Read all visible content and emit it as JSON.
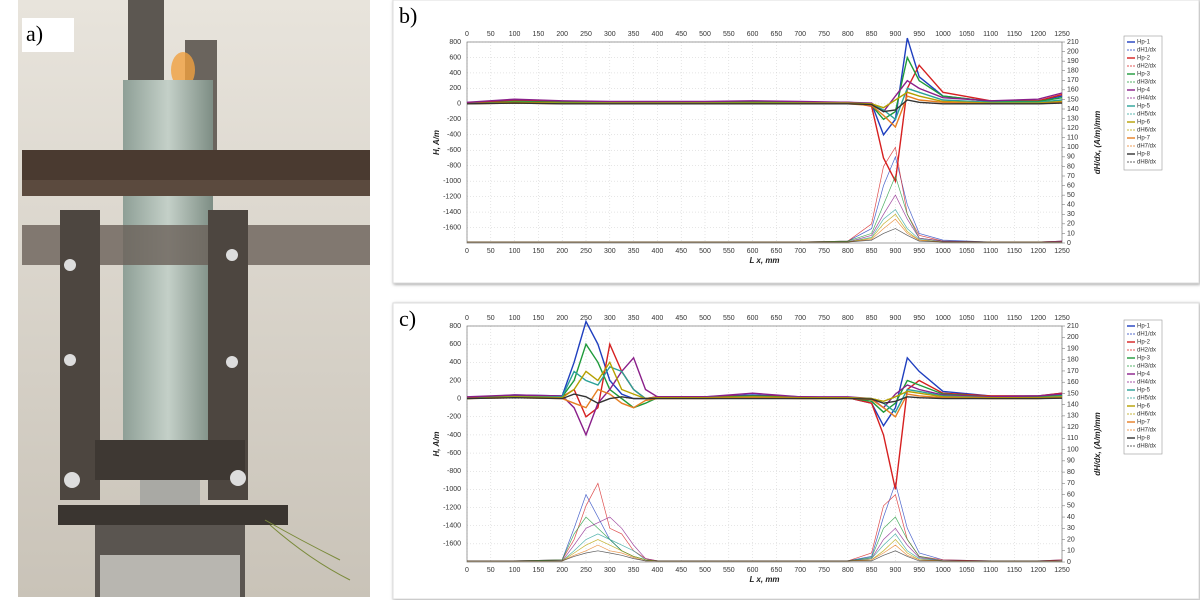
{
  "photo": {
    "label": "a)"
  },
  "chart_data": [
    {
      "type": "line",
      "label": "b)",
      "xlabel": "L x, mm",
      "ylabel": "H, A/m",
      "y2label": "dH/dx, (A/m)/mm",
      "x": [
        0,
        100,
        200,
        300,
        400,
        500,
        600,
        700,
        800,
        850,
        875,
        900,
        925,
        950,
        1000,
        1100,
        1200,
        1250
      ],
      "xlim": [
        0,
        1250
      ],
      "ylim": [
        -1800,
        800
      ],
      "y2lim": [
        0,
        210
      ],
      "grid": true,
      "xticks": [
        0,
        50,
        100,
        150,
        200,
        250,
        300,
        350,
        400,
        450,
        500,
        550,
        600,
        650,
        700,
        750,
        800,
        850,
        900,
        950,
        1000,
        1050,
        1100,
        1150,
        1200,
        1250
      ],
      "yticks": [
        800,
        600,
        400,
        200,
        0,
        -200,
        -400,
        -600,
        -800,
        -1000,
        -1200,
        -1400,
        -1600
      ],
      "y2ticks": [
        0,
        10,
        20,
        30,
        40,
        50,
        60,
        70,
        80,
        90,
        100,
        110,
        120,
        130,
        140,
        150,
        160,
        170,
        180,
        190,
        200,
        210
      ],
      "series": [
        {
          "name": "Hp-1",
          "color": "#1f3fbf",
          "values": [
            10,
            50,
            30,
            25,
            20,
            20,
            30,
            20,
            20,
            0,
            -400,
            -200,
            850,
            350,
            100,
            30,
            40,
            100
          ]
        },
        {
          "name": "dH1/dx",
          "color": "#1f3fbf",
          "axis": "y2",
          "values": [
            1,
            1,
            1,
            1,
            1,
            1,
            1,
            1,
            2,
            15,
            60,
            90,
            40,
            10,
            3,
            1,
            1,
            2
          ]
        },
        {
          "name": "Hp-2",
          "color": "#d62020",
          "values": [
            10,
            40,
            30,
            25,
            20,
            20,
            30,
            20,
            20,
            -30,
            -700,
            -1000,
            200,
            500,
            150,
            40,
            40,
            120
          ]
        },
        {
          "name": "dH2/dx",
          "color": "#d62020",
          "axis": "y2",
          "values": [
            1,
            1,
            1,
            1,
            1,
            1,
            1,
            1,
            2,
            20,
            80,
            100,
            30,
            8,
            2,
            1,
            1,
            2
          ]
        },
        {
          "name": "Hp-3",
          "color": "#1e9a3a",
          "values": [
            0,
            30,
            20,
            20,
            20,
            20,
            20,
            20,
            10,
            -20,
            -200,
            -100,
            600,
            300,
            100,
            30,
            30,
            80
          ]
        },
        {
          "name": "dH3/dx",
          "color": "#1e9a3a",
          "axis": "y2",
          "values": [
            1,
            1,
            1,
            1,
            1,
            1,
            1,
            1,
            2,
            10,
            40,
            70,
            30,
            5,
            2,
            1,
            1,
            1
          ]
        },
        {
          "name": "Hp-4",
          "color": "#8a1f8a",
          "values": [
            20,
            60,
            40,
            30,
            30,
            30,
            40,
            30,
            20,
            10,
            -100,
            100,
            300,
            200,
            80,
            40,
            60,
            140
          ]
        },
        {
          "name": "dH4/dx",
          "color": "#8a1f8a",
          "axis": "y2",
          "values": [
            1,
            1,
            1,
            1,
            1,
            1,
            1,
            1,
            1,
            8,
            30,
            50,
            25,
            5,
            2,
            1,
            1,
            2
          ]
        },
        {
          "name": "Hp-5",
          "color": "#2aa198",
          "values": [
            0,
            20,
            10,
            10,
            10,
            10,
            10,
            10,
            10,
            0,
            -80,
            -200,
            200,
            150,
            50,
            20,
            20,
            50
          ]
        },
        {
          "name": "dH5/dx",
          "color": "#2aa198",
          "axis": "y2",
          "values": [
            1,
            1,
            1,
            1,
            1,
            1,
            1,
            1,
            1,
            6,
            25,
            35,
            15,
            4,
            1,
            1,
            1,
            1
          ]
        },
        {
          "name": "Hp-6",
          "color": "#b5a000",
          "values": [
            0,
            20,
            10,
            10,
            10,
            10,
            10,
            10,
            10,
            0,
            -50,
            50,
            150,
            100,
            30,
            10,
            10,
            30
          ]
        },
        {
          "name": "dH6/dx",
          "color": "#b5a000",
          "axis": "y2",
          "values": [
            1,
            1,
            1,
            1,
            1,
            1,
            1,
            1,
            1,
            5,
            20,
            30,
            12,
            3,
            1,
            1,
            1,
            1
          ]
        },
        {
          "name": "Hp-7",
          "color": "#e67e22",
          "values": [
            0,
            10,
            0,
            0,
            0,
            0,
            0,
            0,
            0,
            -20,
            -150,
            -300,
            100,
            50,
            20,
            0,
            0,
            20
          ]
        },
        {
          "name": "dH7/dx",
          "color": "#e67e22",
          "axis": "y2",
          "values": [
            1,
            1,
            1,
            1,
            1,
            1,
            1,
            1,
            1,
            4,
            15,
            25,
            10,
            3,
            1,
            1,
            1,
            1
          ]
        },
        {
          "name": "Hp-8",
          "color": "#333333",
          "values": [
            0,
            10,
            0,
            0,
            0,
            0,
            0,
            0,
            0,
            -10,
            -100,
            -80,
            50,
            20,
            0,
            0,
            0,
            10
          ]
        },
        {
          "name": "dH8/dx",
          "color": "#333333",
          "axis": "y2",
          "values": [
            1,
            1,
            1,
            1,
            1,
            1,
            1,
            1,
            1,
            3,
            10,
            15,
            8,
            2,
            1,
            1,
            1,
            1
          ]
        }
      ]
    },
    {
      "type": "line",
      "label": "c)",
      "xlabel": "L x, mm",
      "ylabel": "H, A/m",
      "y2label": "dH/dx, (A/m)/mm",
      "x": [
        0,
        100,
        200,
        225,
        250,
        275,
        300,
        325,
        350,
        375,
        400,
        500,
        600,
        700,
        800,
        850,
        875,
        900,
        925,
        950,
        1000,
        1100,
        1200,
        1250
      ],
      "xlim": [
        0,
        1250
      ],
      "ylim": [
        -1800,
        800
      ],
      "y2lim": [
        0,
        210
      ],
      "grid": true,
      "xticks": [
        0,
        50,
        100,
        150,
        200,
        250,
        300,
        350,
        400,
        450,
        500,
        550,
        600,
        650,
        700,
        750,
        800,
        850,
        900,
        950,
        1000,
        1050,
        1100,
        1150,
        1200,
        1250
      ],
      "yticks": [
        800,
        600,
        400,
        200,
        0,
        -200,
        -400,
        -600,
        -800,
        -1000,
        -1200,
        -1400,
        -1600
      ],
      "y2ticks": [
        0,
        10,
        20,
        30,
        40,
        50,
        60,
        70,
        80,
        90,
        100,
        110,
        120,
        130,
        140,
        150,
        160,
        170,
        180,
        190,
        200,
        210
      ],
      "series": [
        {
          "name": "Hp-1",
          "color": "#1f3fbf",
          "values": [
            10,
            40,
            30,
            400,
            850,
            600,
            200,
            50,
            0,
            0,
            20,
            20,
            40,
            20,
            10,
            -50,
            -300,
            -100,
            450,
            300,
            80,
            30,
            30,
            60
          ]
        },
        {
          "name": "dH1/dx",
          "color": "#1f3fbf",
          "axis": "y2",
          "values": [
            1,
            1,
            2,
            30,
            60,
            40,
            20,
            10,
            5,
            2,
            1,
            1,
            1,
            1,
            1,
            5,
            40,
            70,
            30,
            8,
            2,
            1,
            1,
            2
          ]
        },
        {
          "name": "Hp-2",
          "color": "#d62020",
          "values": [
            10,
            30,
            20,
            100,
            -200,
            -100,
            600,
            300,
            100,
            0,
            20,
            20,
            30,
            20,
            10,
            -50,
            -400,
            -1000,
            100,
            200,
            60,
            30,
            30,
            60
          ]
        },
        {
          "name": "dH2/dx",
          "color": "#d62020",
          "axis": "y2",
          "values": [
            1,
            1,
            2,
            20,
            50,
            70,
            30,
            25,
            10,
            3,
            1,
            1,
            1,
            1,
            1,
            8,
            50,
            60,
            20,
            5,
            2,
            1,
            1,
            2
          ]
        },
        {
          "name": "Hp-3",
          "color": "#1e9a3a",
          "values": [
            0,
            30,
            20,
            200,
            600,
            400,
            100,
            0,
            -100,
            -50,
            10,
            10,
            30,
            10,
            10,
            -30,
            -150,
            -50,
            200,
            150,
            50,
            20,
            20,
            40
          ]
        },
        {
          "name": "dH3/dx",
          "color": "#1e9a3a",
          "axis": "y2",
          "values": [
            1,
            1,
            2,
            25,
            40,
            30,
            20,
            10,
            5,
            2,
            1,
            1,
            1,
            1,
            1,
            4,
            30,
            40,
            20,
            5,
            1,
            1,
            1,
            1
          ]
        },
        {
          "name": "Hp-4",
          "color": "#8a1f8a",
          "values": [
            20,
            40,
            30,
            -100,
            -400,
            -50,
            100,
            300,
            450,
            100,
            20,
            20,
            60,
            20,
            20,
            0,
            -100,
            50,
            150,
            100,
            40,
            20,
            30,
            50
          ]
        },
        {
          "name": "dH4/dx",
          "color": "#8a1f8a",
          "axis": "y2",
          "values": [
            1,
            1,
            1,
            15,
            30,
            35,
            40,
            30,
            15,
            3,
            1,
            1,
            1,
            1,
            1,
            3,
            20,
            30,
            15,
            4,
            1,
            1,
            1,
            1
          ]
        },
        {
          "name": "Hp-5",
          "color": "#2aa198",
          "values": [
            0,
            20,
            20,
            300,
            200,
            150,
            350,
            300,
            100,
            0,
            10,
            10,
            20,
            10,
            10,
            0,
            -50,
            -150,
            100,
            80,
            30,
            10,
            10,
            30
          ]
        },
        {
          "name": "dH5/dx",
          "color": "#2aa198",
          "axis": "y2",
          "values": [
            1,
            1,
            1,
            10,
            20,
            25,
            20,
            15,
            10,
            2,
            1,
            1,
            1,
            1,
            1,
            3,
            15,
            25,
            10,
            3,
            1,
            1,
            1,
            1
          ]
        },
        {
          "name": "Hp-6",
          "color": "#b5a000",
          "values": [
            0,
            20,
            10,
            100,
            300,
            200,
            400,
            100,
            50,
            0,
            10,
            10,
            20,
            10,
            10,
            0,
            -30,
            20,
            80,
            60,
            20,
            10,
            10,
            20
          ]
        },
        {
          "name": "dH6/dx",
          "color": "#b5a000",
          "axis": "y2",
          "values": [
            1,
            1,
            1,
            8,
            15,
            20,
            15,
            10,
            5,
            2,
            1,
            1,
            1,
            1,
            1,
            2,
            10,
            20,
            8,
            2,
            1,
            1,
            1,
            1
          ]
        },
        {
          "name": "Hp-7",
          "color": "#e67e22",
          "values": [
            0,
            10,
            0,
            -50,
            -100,
            100,
            50,
            -50,
            -100,
            -20,
            0,
            0,
            10,
            0,
            0,
            -10,
            -100,
            -200,
            50,
            30,
            10,
            0,
            0,
            10
          ]
        },
        {
          "name": "dH7/dx",
          "color": "#e67e22",
          "axis": "y2",
          "values": [
            1,
            1,
            1,
            6,
            10,
            15,
            10,
            8,
            4,
            1,
            1,
            1,
            1,
            1,
            1,
            2,
            8,
            15,
            6,
            2,
            1,
            1,
            1,
            1
          ]
        },
        {
          "name": "Hp-8",
          "color": "#333333",
          "values": [
            0,
            10,
            0,
            50,
            20,
            -50,
            0,
            20,
            0,
            0,
            0,
            0,
            0,
            0,
            0,
            -5,
            -50,
            -30,
            20,
            10,
            0,
            0,
            0,
            5
          ]
        },
        {
          "name": "dH8/dx",
          "color": "#333333",
          "axis": "y2",
          "values": [
            1,
            1,
            1,
            5,
            8,
            10,
            8,
            6,
            3,
            1,
            1,
            1,
            1,
            1,
            1,
            1,
            6,
            10,
            5,
            1,
            1,
            1,
            1,
            1
          ]
        }
      ]
    }
  ]
}
